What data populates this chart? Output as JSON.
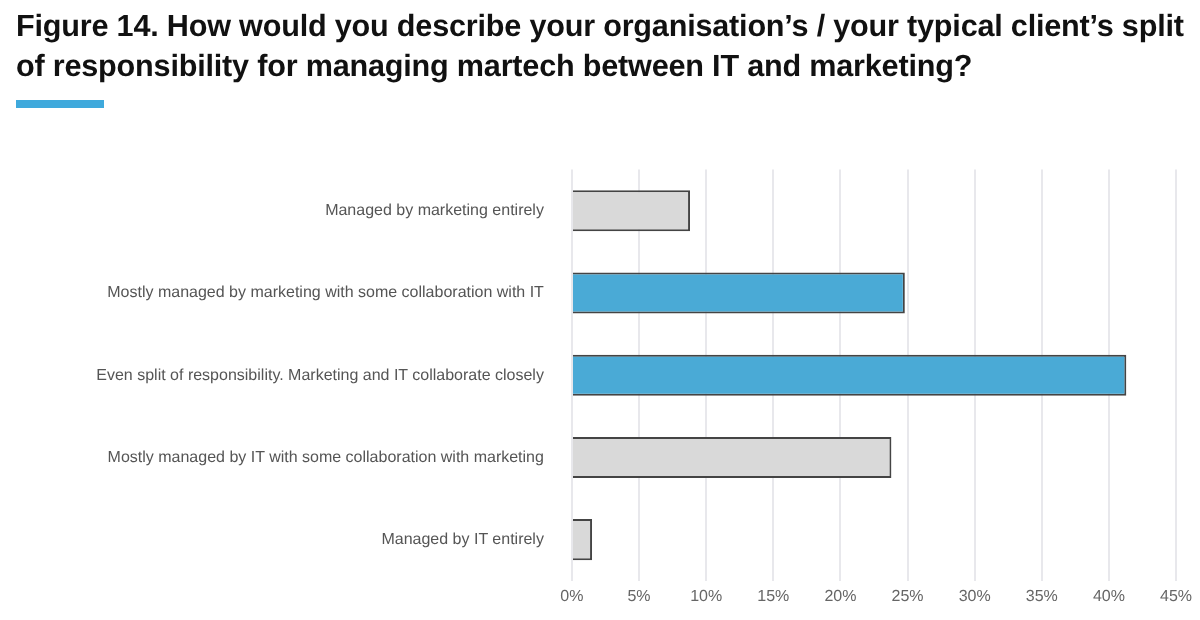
{
  "chart_data": {
    "type": "bar",
    "orientation": "horizontal",
    "title": "Figure 14. How would you describe your organisation’s / your typical client’s split of responsibility for managing martech between IT and marketing?",
    "categories": [
      "Managed by marketing entirely",
      "Mostly managed by marketing with some collaboration with IT",
      "Even split of responsibility. Marketing and IT collaborate closely",
      "Mostly managed by IT with some collaboration with marketing",
      "Managed by IT entirely"
    ],
    "values": [
      8.8,
      24.8,
      41.3,
      23.8,
      1.5
    ],
    "colors": [
      "#d9d9d9",
      "#4aaad6",
      "#4aaad6",
      "#d9d9d9",
      "#d9d9d9"
    ],
    "xlim": [
      0,
      45
    ],
    "xticks": [
      {
        "value": 0,
        "label": "0%"
      },
      {
        "value": 5,
        "label": "5%"
      },
      {
        "value": 10,
        "label": "10%"
      },
      {
        "value": 15,
        "label": "15%"
      },
      {
        "value": 20,
        "label": "20%"
      },
      {
        "value": 25,
        "label": "25%"
      },
      {
        "value": 30,
        "label": "30%"
      },
      {
        "value": 35,
        "label": "35%"
      },
      {
        "value": 40,
        "label": "40%"
      },
      {
        "value": 45,
        "label": "45%"
      }
    ],
    "grid": "x",
    "legend": false
  }
}
